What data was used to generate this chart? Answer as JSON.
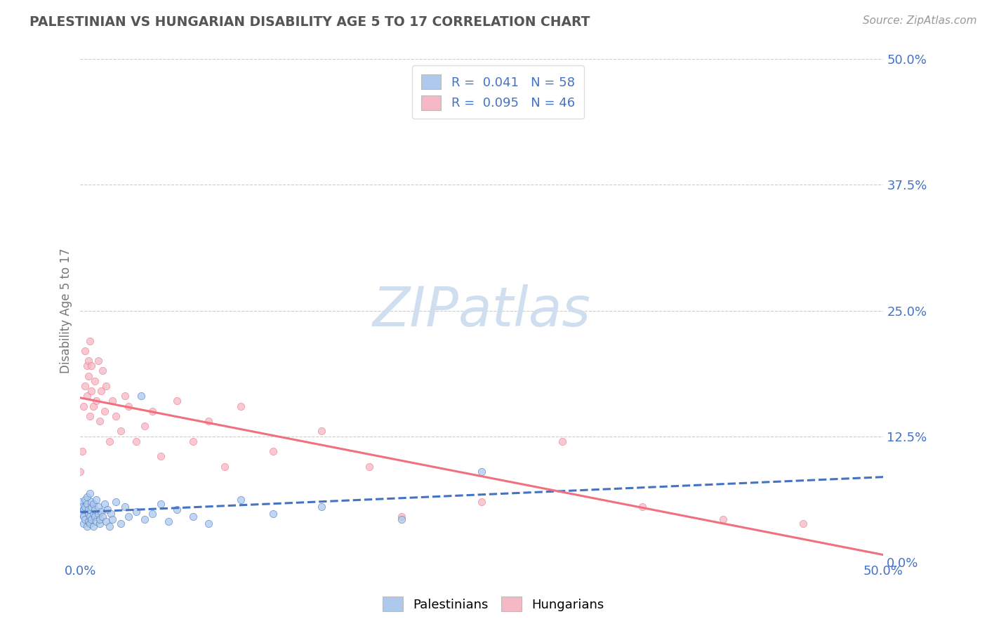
{
  "title": "PALESTINIAN VS HUNGARIAN DISABILITY AGE 5 TO 17 CORRELATION CHART",
  "source_text": "Source: ZipAtlas.com",
  "ylabel": "Disability Age 5 to 17",
  "xmin": 0.0,
  "xmax": 0.5,
  "ymin": 0.0,
  "ymax": 0.5,
  "ytick_values": [
    0.0,
    0.125,
    0.25,
    0.375,
    0.5
  ],
  "legend_bottom": [
    "Palestinians",
    "Hungarians"
  ],
  "r_palestinian": 0.041,
  "n_palestinian": 58,
  "r_hungarian": 0.095,
  "n_hungarian": 46,
  "palestinian_color": "#adc9eb",
  "hungarian_color": "#f5b8c4",
  "trendline_palestinian_color": "#4472c4",
  "trendline_hungarian_color": "#f07080",
  "watermark_color": "#d0dff0",
  "background_color": "#ffffff",
  "grid_color": "#cccccc",
  "title_color": "#555555",
  "axis_label_color": "#777777",
  "tick_label_color": "#4472c4",
  "source_color": "#999999",
  "palestinian_points": [
    [
      0.0,
      0.06
    ],
    [
      0.001,
      0.055
    ],
    [
      0.001,
      0.048
    ],
    [
      0.002,
      0.052
    ],
    [
      0.002,
      0.045
    ],
    [
      0.002,
      0.038
    ],
    [
      0.003,
      0.062
    ],
    [
      0.003,
      0.042
    ],
    [
      0.003,
      0.055
    ],
    [
      0.004,
      0.058
    ],
    [
      0.004,
      0.035
    ],
    [
      0.004,
      0.065
    ],
    [
      0.005,
      0.048
    ],
    [
      0.005,
      0.04
    ],
    [
      0.005,
      0.052
    ],
    [
      0.006,
      0.045
    ],
    [
      0.006,
      0.068
    ],
    [
      0.006,
      0.038
    ],
    [
      0.007,
      0.055
    ],
    [
      0.007,
      0.042
    ],
    [
      0.007,
      0.06
    ],
    [
      0.008,
      0.048
    ],
    [
      0.008,
      0.035
    ],
    [
      0.008,
      0.058
    ],
    [
      0.009,
      0.045
    ],
    [
      0.009,
      0.052
    ],
    [
      0.01,
      0.04
    ],
    [
      0.01,
      0.062
    ],
    [
      0.011,
      0.048
    ],
    [
      0.011,
      0.055
    ],
    [
      0.012,
      0.038
    ],
    [
      0.012,
      0.042
    ],
    [
      0.013,
      0.05
    ],
    [
      0.014,
      0.045
    ],
    [
      0.015,
      0.058
    ],
    [
      0.016,
      0.04
    ],
    [
      0.017,
      0.052
    ],
    [
      0.018,
      0.035
    ],
    [
      0.019,
      0.048
    ],
    [
      0.02,
      0.042
    ],
    [
      0.022,
      0.06
    ],
    [
      0.025,
      0.038
    ],
    [
      0.028,
      0.055
    ],
    [
      0.03,
      0.045
    ],
    [
      0.035,
      0.05
    ],
    [
      0.038,
      0.165
    ],
    [
      0.04,
      0.042
    ],
    [
      0.045,
      0.048
    ],
    [
      0.05,
      0.058
    ],
    [
      0.055,
      0.04
    ],
    [
      0.06,
      0.052
    ],
    [
      0.07,
      0.045
    ],
    [
      0.08,
      0.038
    ],
    [
      0.1,
      0.062
    ],
    [
      0.12,
      0.048
    ],
    [
      0.15,
      0.055
    ],
    [
      0.2,
      0.042
    ],
    [
      0.25,
      0.09
    ]
  ],
  "hungarian_points": [
    [
      0.0,
      0.09
    ],
    [
      0.001,
      0.11
    ],
    [
      0.002,
      0.155
    ],
    [
      0.003,
      0.175
    ],
    [
      0.003,
      0.21
    ],
    [
      0.004,
      0.195
    ],
    [
      0.004,
      0.165
    ],
    [
      0.005,
      0.185
    ],
    [
      0.005,
      0.2
    ],
    [
      0.006,
      0.145
    ],
    [
      0.006,
      0.22
    ],
    [
      0.007,
      0.17
    ],
    [
      0.007,
      0.195
    ],
    [
      0.008,
      0.155
    ],
    [
      0.009,
      0.18
    ],
    [
      0.01,
      0.16
    ],
    [
      0.011,
      0.2
    ],
    [
      0.012,
      0.14
    ],
    [
      0.013,
      0.17
    ],
    [
      0.014,
      0.19
    ],
    [
      0.015,
      0.15
    ],
    [
      0.016,
      0.175
    ],
    [
      0.018,
      0.12
    ],
    [
      0.02,
      0.16
    ],
    [
      0.022,
      0.145
    ],
    [
      0.025,
      0.13
    ],
    [
      0.028,
      0.165
    ],
    [
      0.03,
      0.155
    ],
    [
      0.035,
      0.12
    ],
    [
      0.04,
      0.135
    ],
    [
      0.045,
      0.15
    ],
    [
      0.05,
      0.105
    ],
    [
      0.06,
      0.16
    ],
    [
      0.07,
      0.12
    ],
    [
      0.08,
      0.14
    ],
    [
      0.09,
      0.095
    ],
    [
      0.1,
      0.155
    ],
    [
      0.12,
      0.11
    ],
    [
      0.15,
      0.13
    ],
    [
      0.18,
      0.095
    ],
    [
      0.2,
      0.045
    ],
    [
      0.25,
      0.06
    ],
    [
      0.3,
      0.12
    ],
    [
      0.35,
      0.055
    ],
    [
      0.4,
      0.042
    ],
    [
      0.45,
      0.038
    ]
  ]
}
